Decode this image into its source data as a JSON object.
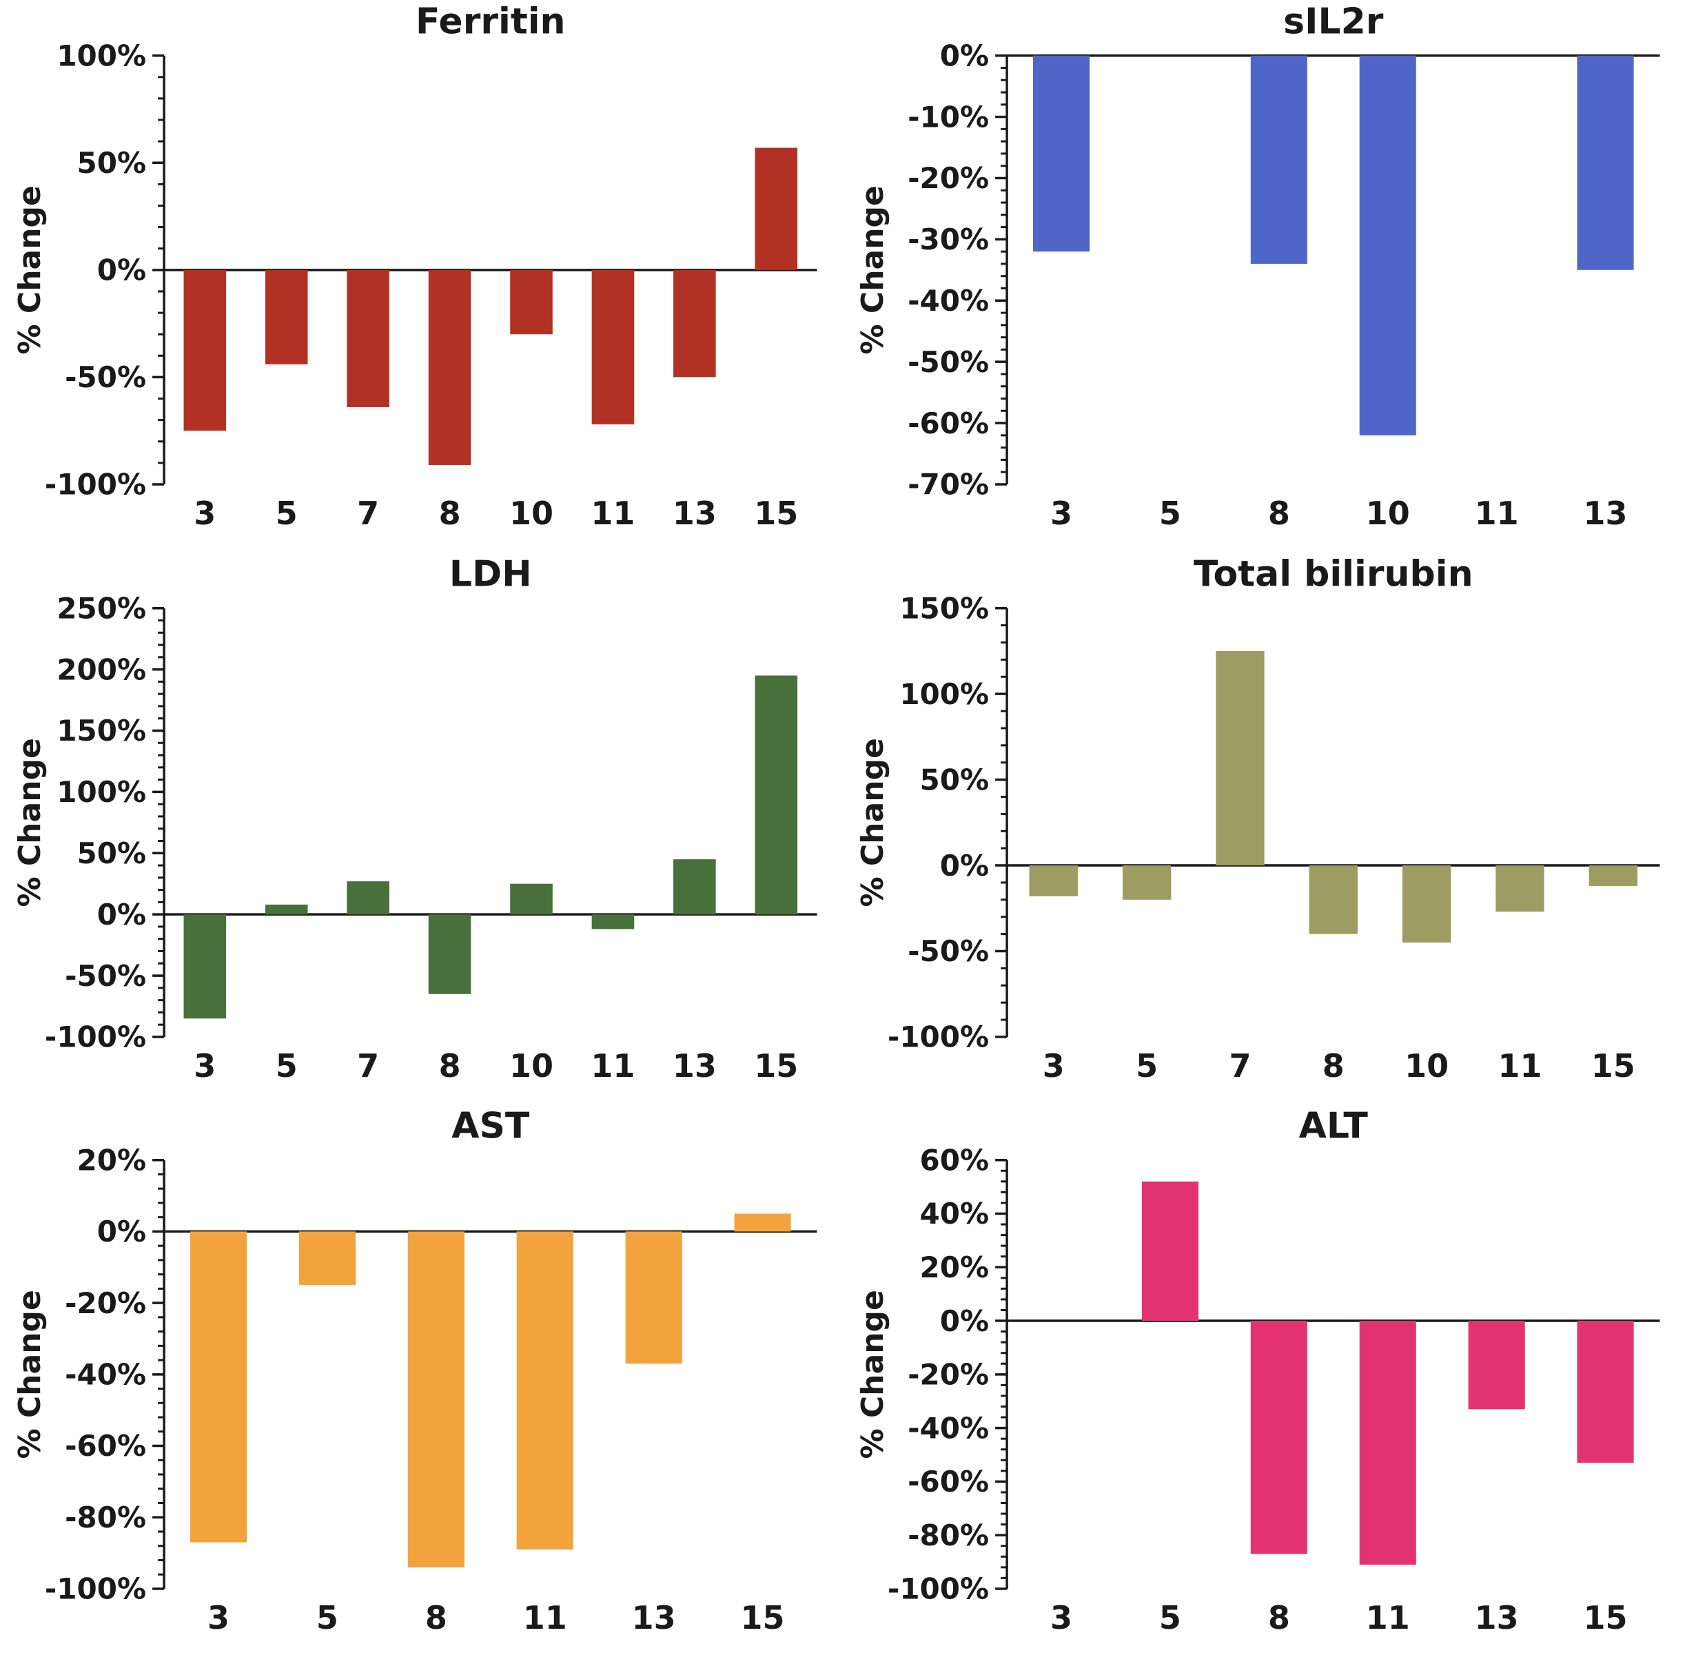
{
  "page": {
    "background": "#ffffff",
    "layout": "2x3-grid-of-bar-charts"
  },
  "chart_data": [
    {
      "type": "bar",
      "title": "Ferritin",
      "ylabel": "% Change",
      "color": "#b13224",
      "categories": [
        "3",
        "5",
        "7",
        "8",
        "10",
        "11",
        "13",
        "15"
      ],
      "values": [
        -75,
        -44,
        -64,
        -91,
        -30,
        -72,
        -50,
        57
      ],
      "ylim": [
        -100,
        100
      ],
      "ytick_step": 50,
      "minor_per_major": 5,
      "tick_suffix": "%",
      "grid": false,
      "legend": "none"
    },
    {
      "type": "bar",
      "title": "sIL2r",
      "ylabel": "% Change",
      "color": "#4f66c8",
      "categories": [
        "3",
        "5",
        "8",
        "10",
        "11",
        "13"
      ],
      "values": [
        -32,
        0,
        -34,
        -62,
        0,
        -35
      ],
      "ylim": [
        -70,
        0
      ],
      "ytick_step": 10,
      "minor_per_major": 5,
      "tick_suffix": "%",
      "grid": false,
      "legend": "none"
    },
    {
      "type": "bar",
      "title": "LDH",
      "ylabel": "% Change",
      "color": "#47703a",
      "categories": [
        "3",
        "5",
        "7",
        "8",
        "10",
        "11",
        "13",
        "15"
      ],
      "values": [
        -85,
        8,
        27,
        -65,
        25,
        -12,
        45,
        195
      ],
      "ylim": [
        -100,
        250
      ],
      "ytick_step": 50,
      "minor_per_major": 5,
      "tick_suffix": "%",
      "grid": false,
      "legend": "none"
    },
    {
      "type": "bar",
      "title": "Total bilirubin",
      "ylabel": "% Change",
      "color": "#9d9c62",
      "categories": [
        "3",
        "5",
        "7",
        "8",
        "10",
        "11",
        "15"
      ],
      "values": [
        -18,
        -20,
        125,
        -40,
        -45,
        -27,
        -12
      ],
      "ylim": [
        -100,
        150
      ],
      "ytick_step": 50,
      "minor_per_major": 5,
      "tick_suffix": "%",
      "grid": false,
      "legend": "none"
    },
    {
      "type": "bar",
      "title": "AST",
      "ylabel": "% Change",
      "color": "#f3a33e",
      "categories": [
        "3",
        "5",
        "8",
        "11",
        "13",
        "15"
      ],
      "values": [
        -87,
        -15,
        -94,
        -89,
        -37,
        5
      ],
      "ylim": [
        -100,
        20
      ],
      "ytick_step": 20,
      "minor_per_major": 5,
      "tick_suffix": "%",
      "grid": false,
      "legend": "none"
    },
    {
      "type": "bar",
      "title": "ALT",
      "ylabel": "% Change",
      "color": "#e23370",
      "categories": [
        "3",
        "5",
        "8",
        "11",
        "13",
        "15"
      ],
      "values": [
        0,
        52,
        -87,
        -91,
        -33,
        -53
      ],
      "ylim": [
        -100,
        60
      ],
      "ytick_step": 20,
      "minor_per_major": 5,
      "tick_suffix": "%",
      "grid": false,
      "legend": "none"
    }
  ]
}
